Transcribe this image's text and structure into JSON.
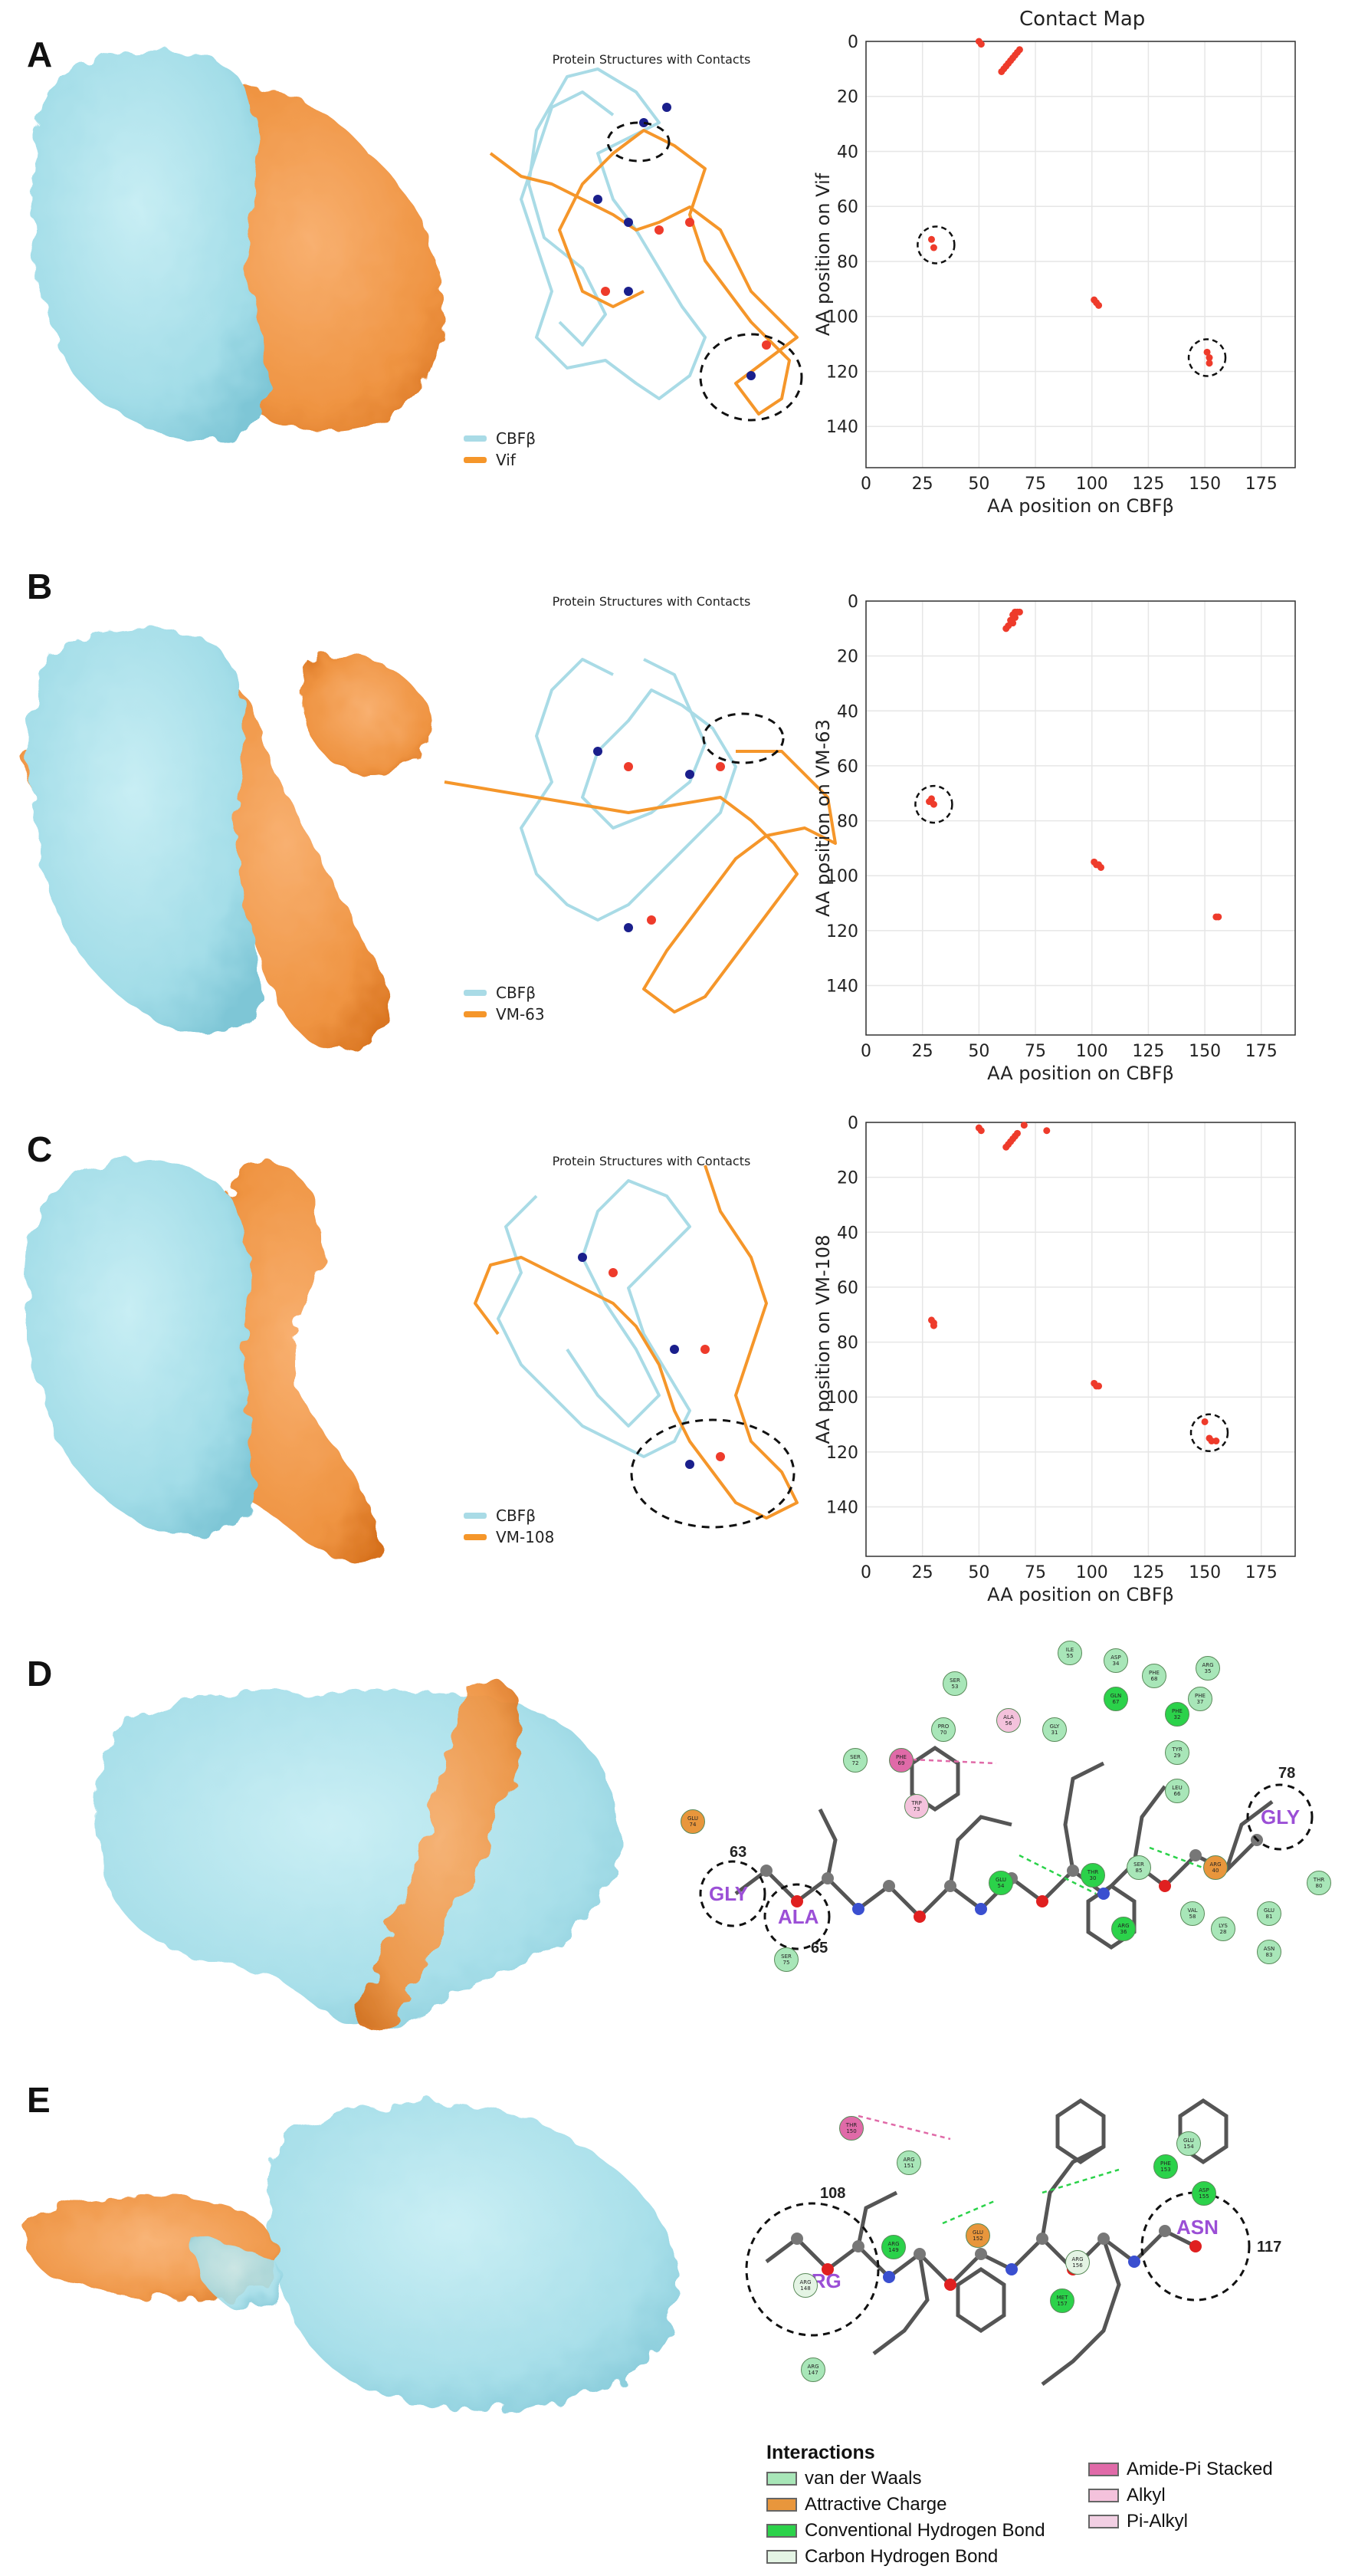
{
  "panels": [
    {
      "letter": "A",
      "structure_title": "Protein Structures with Contacts",
      "legend": [
        {
          "label": "CBFβ",
          "color": "#a9dbe6"
        },
        {
          "label": "Vif",
          "color": "#f5962a"
        }
      ],
      "contact_map_title": "Contact Map"
    },
    {
      "letter": "B",
      "structure_title": "Protein Structures with Contacts",
      "legend": [
        {
          "label": "CBFβ",
          "color": "#a9dbe6"
        },
        {
          "label": "VM-63",
          "color": "#f5962a"
        }
      ]
    },
    {
      "letter": "C",
      "structure_title": "Protein Structures with Contacts",
      "legend": [
        {
          "label": "CBFβ",
          "color": "#a9dbe6"
        },
        {
          "label": "VM-108",
          "color": "#f5962a"
        }
      ]
    },
    {
      "letter": "D"
    },
    {
      "letter": "E"
    }
  ],
  "chart_data": [
    {
      "type": "scatter",
      "title": "Contact Map",
      "xlabel": "AA position on CBFβ",
      "ylabel": "AA position on Vif",
      "xlim": [
        0,
        190
      ],
      "ylim": [
        155,
        0
      ],
      "xticks": [
        0,
        25,
        50,
        75,
        100,
        125,
        150,
        175
      ],
      "yticks": [
        0,
        20,
        40,
        60,
        80,
        100,
        120,
        140
      ],
      "grid": true,
      "points": [
        [
          50,
          0
        ],
        [
          51,
          1
        ],
        [
          68,
          3
        ],
        [
          67,
          4
        ],
        [
          66,
          5
        ],
        [
          65,
          6
        ],
        [
          64,
          7
        ],
        [
          63,
          8
        ],
        [
          62,
          9
        ],
        [
          61,
          10
        ],
        [
          60,
          11
        ],
        [
          29,
          72
        ],
        [
          30,
          75
        ],
        [
          101,
          94
        ],
        [
          102,
          95
        ],
        [
          103,
          96
        ],
        [
          151,
          113
        ],
        [
          152,
          115
        ],
        [
          152,
          117
        ]
      ],
      "highlights": [
        [
          31,
          74
        ],
        [
          151,
          115
        ]
      ]
    },
    {
      "type": "scatter",
      "title": "",
      "xlabel": "AA position on CBFβ",
      "ylabel": "AA position on VM-63",
      "xlim": [
        0,
        190
      ],
      "ylim": [
        158,
        0
      ],
      "xticks": [
        0,
        25,
        50,
        75,
        100,
        125,
        150,
        175
      ],
      "yticks": [
        0,
        20,
        40,
        60,
        80,
        100,
        120,
        140
      ],
      "grid": true,
      "points": [
        [
          66,
          4
        ],
        [
          67,
          4
        ],
        [
          68,
          4
        ],
        [
          65,
          5
        ],
        [
          66,
          6
        ],
        [
          64,
          7
        ],
        [
          65,
          8
        ],
        [
          63,
          9
        ],
        [
          62,
          10
        ],
        [
          28,
          73
        ],
        [
          29,
          72
        ],
        [
          30,
          74
        ],
        [
          101,
          95
        ],
        [
          102,
          96
        ],
        [
          103,
          96
        ],
        [
          104,
          97
        ],
        [
          155,
          115
        ],
        [
          156,
          115
        ]
      ],
      "highlights": [
        [
          30,
          74
        ]
      ]
    },
    {
      "type": "scatter",
      "title": "",
      "xlabel": "AA position on CBFβ",
      "ylabel": "AA position on VM-108",
      "xlim": [
        0,
        190
      ],
      "ylim": [
        158,
        0
      ],
      "xticks": [
        0,
        25,
        50,
        75,
        100,
        125,
        150,
        175
      ],
      "yticks": [
        0,
        20,
        40,
        60,
        80,
        100,
        120,
        140
      ],
      "grid": true,
      "points": [
        [
          50,
          2
        ],
        [
          51,
          3
        ],
        [
          70,
          1
        ],
        [
          67,
          4
        ],
        [
          66,
          5
        ],
        [
          65,
          6
        ],
        [
          64,
          7
        ],
        [
          63,
          8
        ],
        [
          62,
          9
        ],
        [
          80,
          3
        ],
        [
          29,
          72
        ],
        [
          30,
          73
        ],
        [
          30,
          74
        ],
        [
          101,
          95
        ],
        [
          102,
          96
        ],
        [
          103,
          96
        ],
        [
          150,
          109
        ],
        [
          152,
          115
        ],
        [
          153,
          116
        ],
        [
          155,
          116
        ]
      ],
      "highlights": [
        [
          152,
          113
        ]
      ]
    }
  ],
  "diagram_D": {
    "residues": [
      {
        "text": "GLY",
        "color": "#9b4fd6"
      },
      {
        "text": "ALA",
        "color": "#9b4fd6"
      },
      {
        "text": "GLY",
        "color": "#9b4fd6"
      },
      {
        "text": "63"
      },
      {
        "text": "65"
      },
      {
        "text": "78"
      }
    ],
    "labels": [
      {
        "text": "ILE\n55",
        "type": "vdw"
      },
      {
        "text": "ASP\n34",
        "type": "vdw"
      },
      {
        "text": "PHE\n68",
        "type": "vdw"
      },
      {
        "text": "ARG\n35",
        "type": "vdw"
      },
      {
        "text": "SER\n53",
        "type": "vdw"
      },
      {
        "text": "GLN\n67",
        "type": "hbond"
      },
      {
        "text": "PHE\n32",
        "type": "hbond"
      },
      {
        "text": "PHE\n37",
        "type": "vdw"
      },
      {
        "text": "PRO\n70",
        "type": "vdw"
      },
      {
        "text": "ALA\n56",
        "type": "alkyl"
      },
      {
        "text": "GLY\n31",
        "type": "vdw"
      },
      {
        "text": "SER\n72",
        "type": "vdw"
      },
      {
        "text": "PHE\n69",
        "type": "amide"
      },
      {
        "text": "TYR\n29",
        "type": "vdw"
      },
      {
        "text": "LEU\n66",
        "type": "vdw"
      },
      {
        "text": "TRP\n73",
        "type": "alkyl"
      },
      {
        "text": "GLU\n74",
        "type": "charge"
      },
      {
        "text": "GLU\n54",
        "type": "hbond"
      },
      {
        "text": "THR\n30",
        "type": "hbond"
      },
      {
        "text": "SER\n85",
        "type": "vdw"
      },
      {
        "text": "ARG\n40",
        "type": "charge"
      },
      {
        "text": "THR\n80",
        "type": "vdw"
      },
      {
        "text": "SER\n75",
        "type": "vdw"
      },
      {
        "text": "VAL\n58",
        "type": "vdw"
      },
      {
        "text": "LYS\n28",
        "type": "vdw"
      },
      {
        "text": "GLU\n81",
        "type": "vdw"
      },
      {
        "text": "ARG\n36",
        "type": "hbond"
      },
      {
        "text": "ASN\n83",
        "type": "vdw"
      }
    ]
  },
  "diagram_E": {
    "residues": [
      {
        "text": "ARG",
        "color": "#9b4fd6"
      },
      {
        "text": "ASN",
        "color": "#9b4fd6"
      },
      {
        "text": "108"
      },
      {
        "text": "117"
      }
    ],
    "labels": [
      {
        "text": "THR\n150",
        "type": "amide"
      },
      {
        "text": "ARG\n151",
        "type": "vdw"
      },
      {
        "text": "GLU\n154",
        "type": "vdw"
      },
      {
        "text": "PHE\n153",
        "type": "hbond"
      },
      {
        "text": "ASP\n155",
        "type": "hbond"
      },
      {
        "text": "GLU\n152",
        "type": "charge"
      },
      {
        "text": "ARG\n149",
        "type": "hbond"
      },
      {
        "text": "ARG\n148",
        "type": "carbon"
      },
      {
        "text": "ARG\n156",
        "type": "carbon"
      },
      {
        "text": "MET\n157",
        "type": "hbond"
      },
      {
        "text": "ARG\n147",
        "type": "vdw"
      }
    ]
  },
  "interactions": {
    "title": "Interactions",
    "items": [
      {
        "label": "van der Waals",
        "color": "#a8e6b8"
      },
      {
        "label": "Attractive Charge",
        "color": "#e8963c"
      },
      {
        "label": "Conventional Hydrogen Bond",
        "color": "#2bd24a"
      },
      {
        "label": "Carbon Hydrogen Bond",
        "color": "#e4f4e4"
      },
      {
        "label": "Amide-Pi Stacked",
        "color": "#e06aa8"
      },
      {
        "label": "Alkyl",
        "color": "#f4c2dc"
      },
      {
        "label": "Pi-Alkyl",
        "color": "#f2cfe3"
      }
    ]
  },
  "colors": {
    "cbf": "#a9dbe6",
    "cbf_dark": "#8cc8d6",
    "partner": "#f5962a",
    "contact_red": "#ee3b2b",
    "contact_blue": "#1a1f8c"
  }
}
